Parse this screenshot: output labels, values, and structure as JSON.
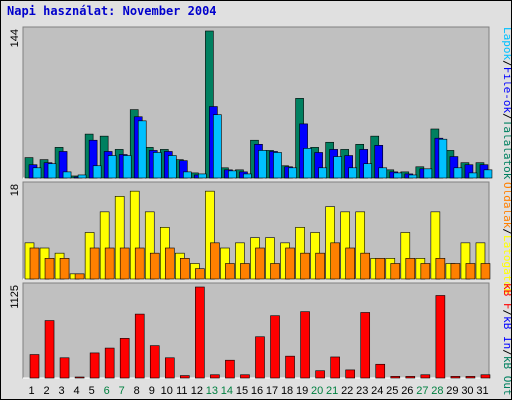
{
  "chart_data": {
    "type": "bar",
    "title": "Napi használat: November 2004",
    "categories": [
      "1",
      "2",
      "3",
      "4",
      "5",
      "6",
      "7",
      "8",
      "9",
      "10",
      "11",
      "12",
      "13",
      "14",
      "15",
      "16",
      "17",
      "18",
      "19",
      "20",
      "21",
      "22",
      "23",
      "24",
      "25",
      "26",
      "27",
      "28",
      "29",
      "30",
      "31"
    ],
    "weekend_days": [
      "6",
      "7",
      "13",
      "14",
      "20",
      "21",
      "27",
      "28"
    ],
    "weekend_color": "#008040",
    "panels": [
      {
        "ymax_label": "144",
        "ymax": 144,
        "series": [
          {
            "name": "Találatok",
            "color": "#008060",
            "values": [
              20,
              18,
              30,
              2,
              43,
              41,
              28,
              67,
              30,
              28,
              18,
              5,
              144,
              10,
              8,
              37,
              27,
              12,
              78,
              30,
              35,
              28,
              33,
              41,
              8,
              6,
              11,
              48,
              27,
              15,
              15
            ]
          },
          {
            "name": "File-ok",
            "color": "#0000ff",
            "values": [
              13,
              15,
              26,
              1,
              37,
              26,
              23,
              60,
              27,
              26,
              17,
              3,
              70,
              8,
              6,
              33,
              26,
              11,
              53,
              25,
              28,
              22,
              28,
              32,
              6,
              4,
              9,
              39,
              21,
              13,
              13
            ]
          },
          {
            "name": "Lapok",
            "color": "#00c0ff",
            "values": [
              10,
              14,
              6,
              3,
              12,
              22,
              22,
              56,
              25,
              22,
              6,
              4,
              62,
              7,
              4,
              27,
              25,
              10,
              29,
              10,
              21,
              10,
              14,
              10,
              5,
              3,
              9,
              38,
              10,
              5,
              8
            ]
          }
        ]
      },
      {
        "ymax_label": "18",
        "ymax": 18,
        "series": [
          {
            "name": "Látogatók",
            "color": "#ffff00",
            "values": [
              7,
              6,
              5,
              1,
              9,
              13,
              16,
              17,
              13,
              10,
              5,
              3,
              17,
              6,
              7,
              8,
              8,
              7,
              10,
              9,
              14,
              13,
              13,
              4,
              4,
              9,
              4,
              13,
              3,
              7,
              7
            ]
          },
          {
            "name": "Oldalak",
            "color": "#ff8000",
            "values": [
              6,
              4,
              4,
              1,
              6,
              6,
              6,
              6,
              5,
              6,
              4,
              2,
              7,
              3,
              3,
              6,
              3,
              6,
              5,
              5,
              7,
              6,
              5,
              4,
              3,
              4,
              3,
              4,
              3,
              3,
              3
            ]
          }
        ]
      },
      {
        "ymax_label": "1125",
        "ymax": 1125,
        "series": [
          {
            "name": "kB In",
            "color": "#0000ff",
            "values": [
              0,
              0,
              0,
              0,
              0,
              0,
              0,
              0,
              0,
              0,
              0,
              0,
              0,
              0,
              0,
              0,
              0,
              0,
              0,
              0,
              0,
              0,
              0,
              0,
              0,
              0,
              0,
              0,
              0,
              0,
              0
            ]
          },
          {
            "name": "kB Out",
            "color": "#ff0000",
            "values": [
              290,
              710,
              250,
              10,
              310,
              370,
              490,
              790,
              400,
              250,
              30,
              1125,
              40,
              220,
              40,
              510,
              770,
              270,
              820,
              90,
              260,
              100,
              810,
              170,
              20,
              20,
              40,
              1020,
              20,
              20,
              40
            ]
          }
        ]
      }
    ],
    "legend_top": [
      {
        "text": "Találatok",
        "color": "#008060"
      },
      {
        "text": "/",
        "color": "#000000"
      },
      {
        "text": "File-ok",
        "color": "#0000ff"
      },
      {
        "text": "/",
        "color": "#000000"
      },
      {
        "text": "Lapok",
        "color": "#00c0ff"
      }
    ],
    "legend_mid": [
      {
        "text": "Látogatók",
        "color": "#ffff00"
      },
      {
        "text": "/",
        "color": "#000000"
      },
      {
        "text": "Oldalak",
        "color": "#ff8000"
      }
    ],
    "legend_bot": [
      {
        "text": "kB Out",
        "color": "#008060"
      },
      {
        "text": "/",
        "color": "#000000"
      },
      {
        "text": "kB In",
        "color": "#0000ff"
      },
      {
        "text": "/",
        "color": "#000000"
      },
      {
        "text": "kB F",
        "color": "#ff0000"
      }
    ],
    "panel_bg": "#c0c0c0",
    "grid": false
  }
}
